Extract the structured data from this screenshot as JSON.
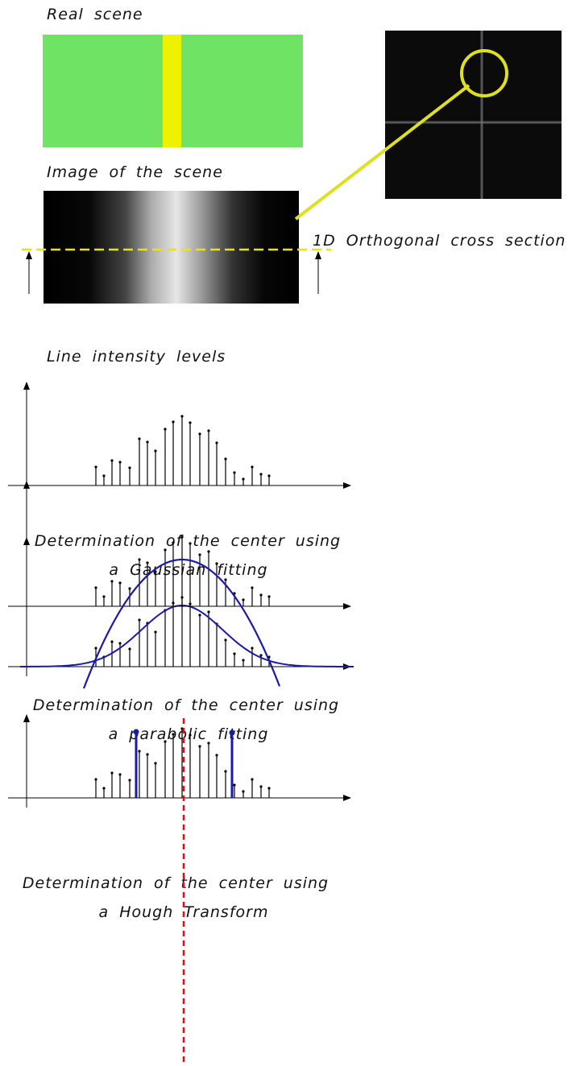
{
  "labels": {
    "real_scene": "Real scene",
    "image_scene": "Image of the scene",
    "cross_section": "1D Orthogonal cross section",
    "line_intensity": "Line intensity levels"
  },
  "methods": [
    {
      "title": "Determination of the center using",
      "subtitle": "a Gaussian fitting"
    },
    {
      "title": "Determination of the center using",
      "subtitle": "a parabolic fitting"
    },
    {
      "title": "Determination of the center using",
      "subtitle": "a Hough Transform"
    }
  ]
}
